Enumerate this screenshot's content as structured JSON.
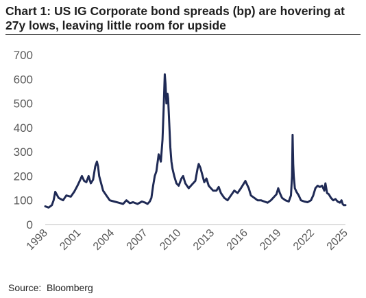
{
  "chart_title": "Chart 1: US IG Corporate bond spreads (bp) are hovering at 27y lows, leaving little room for upside",
  "source_label": "Source:",
  "source_value": "Bloomberg",
  "chart_data": {
    "type": "line",
    "title": "Chart 1: US IG Corporate bond spreads (bp) are hovering at 27y lows, leaving little room for upside",
    "xlabel": "",
    "ylabel": "",
    "xlim": [
      1998,
      2025
    ],
    "ylim": [
      0,
      700
    ],
    "y_ticks": [
      0,
      100,
      200,
      300,
      400,
      500,
      600,
      700
    ],
    "x_tick_labels": [
      "1998",
      "2001",
      "2004",
      "2007",
      "2010",
      "2013",
      "2016",
      "2019",
      "2022",
      "2025"
    ],
    "line_color": "#1f2a55",
    "grid": false,
    "legend": "none",
    "series": [
      {
        "x": [
          1998.0,
          1998.3,
          1998.6,
          1998.75,
          1998.9,
          1999.2,
          1999.6,
          1999.9,
          2000.3,
          2000.6,
          2000.9,
          2001.1,
          2001.3,
          2001.5,
          2001.7,
          2001.9,
          2002.1,
          2002.3,
          2002.5,
          2002.65,
          2002.75,
          2002.85,
          2003.0,
          2003.2,
          2003.5,
          2003.8,
          2004.2,
          2004.6,
          2005.0,
          2005.3,
          2005.6,
          2005.9,
          2006.3,
          2006.7,
          2007.0,
          2007.2,
          2007.4,
          2007.55,
          2007.7,
          2007.85,
          2008.0,
          2008.2,
          2008.4,
          2008.55,
          2008.65,
          2008.75,
          2008.82,
          2008.9,
          2009.0,
          2009.05,
          2009.15,
          2009.25,
          2009.35,
          2009.45,
          2009.6,
          2009.8,
          2010.0,
          2010.25,
          2010.4,
          2010.6,
          2010.9,
          2011.2,
          2011.5,
          2011.7,
          2011.8,
          2011.95,
          2012.1,
          2012.3,
          2012.5,
          2012.7,
          2012.9,
          2013.1,
          2013.4,
          2013.6,
          2013.8,
          2014.1,
          2014.4,
          2014.7,
          2015.0,
          2015.3,
          2015.6,
          2015.8,
          2016.0,
          2016.1,
          2016.3,
          2016.5,
          2016.8,
          2017.1,
          2017.4,
          2017.7,
          2018.0,
          2018.3,
          2018.6,
          2018.8,
          2018.95,
          2019.1,
          2019.3,
          2019.6,
          2019.9,
          2020.1,
          2020.2,
          2020.25,
          2020.3,
          2020.35,
          2020.45,
          2020.6,
          2020.8,
          2021.0,
          2021.3,
          2021.6,
          2021.9,
          2022.1,
          2022.3,
          2022.5,
          2022.7,
          2022.9,
          2023.1,
          2023.2,
          2023.35,
          2023.5,
          2023.7,
          2023.9,
          2024.1,
          2024.3,
          2024.5,
          2024.65,
          2024.75,
          2024.85,
          2025.0
        ],
        "values": [
          75,
          70,
          80,
          100,
          135,
          110,
          100,
          120,
          115,
          135,
          160,
          180,
          200,
          180,
          175,
          200,
          170,
          185,
          240,
          260,
          240,
          200,
          175,
          140,
          120,
          100,
          95,
          90,
          85,
          100,
          88,
          92,
          85,
          95,
          90,
          85,
          95,
          110,
          160,
          200,
          220,
          290,
          260,
          350,
          480,
          620,
          580,
          500,
          540,
          520,
          420,
          320,
          260,
          230,
          200,
          170,
          160,
          190,
          200,
          170,
          150,
          165,
          180,
          230,
          250,
          235,
          210,
          175,
          190,
          160,
          150,
          140,
          140,
          155,
          130,
          110,
          100,
          120,
          140,
          130,
          150,
          165,
          180,
          170,
          150,
          120,
          110,
          100,
          100,
          95,
          90,
          100,
          115,
          125,
          150,
          130,
          110,
          100,
          95,
          120,
          200,
          370,
          250,
          200,
          150,
          135,
          120,
          100,
          95,
          92,
          100,
          120,
          150,
          160,
          155,
          160,
          140,
          170,
          130,
          125,
          110,
          100,
          105,
          95,
          90,
          100,
          85,
          80,
          80
        ]
      }
    ]
  }
}
